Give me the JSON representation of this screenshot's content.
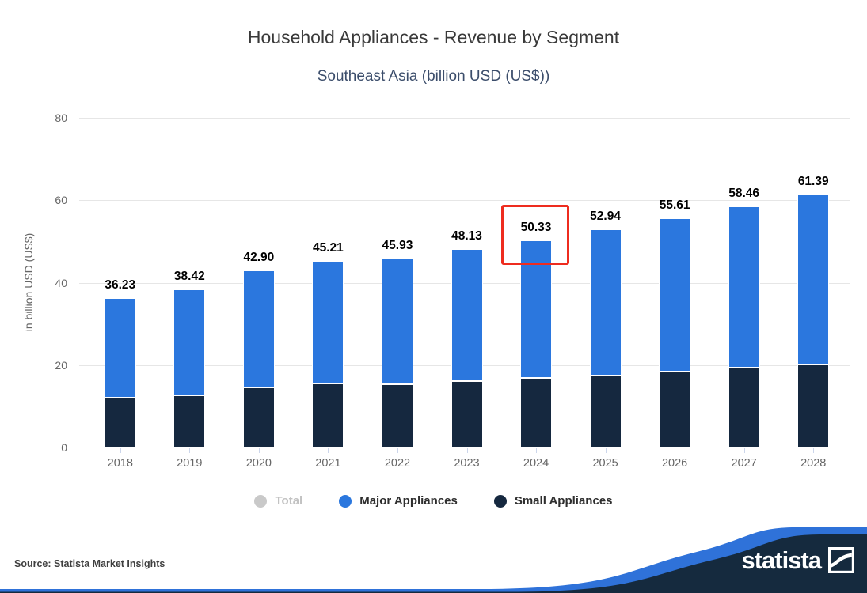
{
  "header": {
    "title": "Household Appliances - Revenue by Segment",
    "subtitle": "Southeast Asia (billion USD (US$))"
  },
  "chart_data": {
    "type": "bar",
    "stacked": true,
    "title": "Household Appliances - Revenue by Segment",
    "subtitle": "Southeast Asia (billion USD (US$))",
    "categories": [
      "2018",
      "2019",
      "2020",
      "2021",
      "2022",
      "2023",
      "2024",
      "2025",
      "2026",
      "2027",
      "2028"
    ],
    "series": [
      {
        "name": "Small Appliances",
        "color": "#15283f",
        "values": [
          12.0,
          12.7,
          14.6,
          15.5,
          15.3,
          16.1,
          16.9,
          17.5,
          18.4,
          19.3,
          20.1
        ]
      },
      {
        "name": "Major Appliances",
        "color": "#2b77de",
        "values": [
          24.23,
          25.72,
          28.3,
          29.71,
          30.63,
          32.03,
          33.43,
          35.44,
          37.21,
          39.16,
          41.29
        ]
      }
    ],
    "totals": [
      36.23,
      38.42,
      42.9,
      45.21,
      45.93,
      48.13,
      50.33,
      52.94,
      55.61,
      58.46,
      61.39
    ],
    "total_labels": [
      "36.23",
      "38.42",
      "42.90",
      "45.21",
      "45.93",
      "48.13",
      "50.33",
      "52.94",
      "55.61",
      "58.46",
      "61.39"
    ],
    "ylabel": "in billion USD (US$)",
    "ylim": [
      0,
      80
    ],
    "yticks": [
      0,
      20,
      40,
      60,
      80
    ],
    "ytick_labels": [
      "0",
      "20",
      "40",
      "60",
      "80"
    ],
    "grid": true,
    "legend_position": "bottom",
    "legend": [
      {
        "label": "Total",
        "color": "#c9c9c9",
        "disabled": true
      },
      {
        "label": "Major Appliances",
        "color": "#2b77de",
        "disabled": false
      },
      {
        "label": "Small Appliances",
        "color": "#15283f",
        "disabled": false
      }
    ],
    "annotation": {
      "shape": "red-box",
      "category": "2024",
      "value_highlighted": "50.33",
      "color": "#ee2c1f"
    }
  },
  "colors": {
    "grid": "#e6e6e6",
    "axis": "#ccd6eb",
    "tick_text": "#666666",
    "data_label": "#000000",
    "footer_navy": "#152a3e",
    "footer_blue": "#2f72d9"
  },
  "footer": {
    "source": "Source: Statista Market Insights",
    "brand": "statista"
  }
}
